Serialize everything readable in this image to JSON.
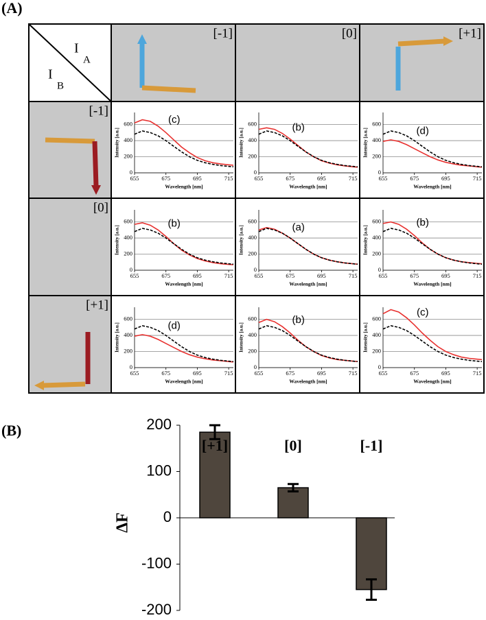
{
  "figure": {
    "panel_a": "(A)",
    "panel_b": "(B)",
    "corner": {
      "top": {
        "main": "I",
        "sub": "A"
      },
      "bottom": {
        "main": "I",
        "sub": "B"
      }
    },
    "col_headers": [
      "[-1]",
      "[0]",
      "[+1]"
    ],
    "row_headers": [
      "[-1]",
      "[0]",
      "[+1]"
    ]
  },
  "chart_data": [
    {
      "type": "line",
      "annotation": "(c)",
      "xlabel": "Wavelength [nm]",
      "ylabel": "Intensity [a.u.]",
      "grid": true,
      "x": [
        655,
        660,
        665,
        670,
        675,
        680,
        685,
        690,
        695,
        700,
        705,
        710,
        715,
        718
      ],
      "xlim": [
        655,
        718
      ],
      "xticks": [
        655,
        675,
        695,
        715
      ],
      "ylim": [
        0,
        750
      ],
      "yticks": [
        0,
        200,
        400,
        600
      ],
      "series": [
        {
          "color": "#e8312f",
          "values": [
            620,
            660,
            640,
            580,
            500,
            410,
            320,
            250,
            190,
            150,
            125,
            110,
            100,
            95
          ]
        },
        {
          "color": "#000000",
          "dash": true,
          "values": [
            480,
            520,
            500,
            460,
            400,
            330,
            260,
            200,
            155,
            125,
            105,
            90,
            80,
            75
          ]
        }
      ]
    },
    {
      "type": "line",
      "annotation": "(b)",
      "xlabel": "Wavelength [nm]",
      "ylabel": "Intensity [a.u.]",
      "grid": true,
      "x": [
        655,
        660,
        665,
        670,
        675,
        680,
        685,
        690,
        695,
        700,
        705,
        710,
        715,
        718
      ],
      "xlim": [
        655,
        718
      ],
      "xticks": [
        655,
        675,
        695,
        715
      ],
      "ylim": [
        0,
        750
      ],
      "yticks": [
        0,
        200,
        400,
        600
      ],
      "series": [
        {
          "color": "#e8312f",
          "values": [
            540,
            560,
            540,
            490,
            420,
            340,
            260,
            200,
            150,
            120,
            100,
            85,
            75,
            70
          ]
        },
        {
          "color": "#000000",
          "dash": true,
          "values": [
            480,
            520,
            500,
            460,
            400,
            330,
            260,
            200,
            155,
            125,
            105,
            90,
            80,
            75
          ]
        }
      ]
    },
    {
      "type": "line",
      "annotation": "(d)",
      "xlabel": "Wavelength [nm]",
      "ylabel": "Intensity [a.u.]",
      "grid": true,
      "x": [
        655,
        660,
        665,
        670,
        675,
        680,
        685,
        690,
        695,
        700,
        705,
        710,
        715,
        718
      ],
      "xlim": [
        655,
        718
      ],
      "xticks": [
        655,
        675,
        695,
        715
      ],
      "ylim": [
        0,
        750
      ],
      "yticks": [
        0,
        200,
        400,
        600
      ],
      "series": [
        {
          "color": "#e8312f",
          "values": [
            390,
            410,
            390,
            350,
            300,
            250,
            200,
            160,
            130,
            110,
            95,
            85,
            75,
            70
          ]
        },
        {
          "color": "#000000",
          "dash": true,
          "values": [
            480,
            520,
            500,
            460,
            400,
            330,
            260,
            200,
            155,
            125,
            105,
            90,
            80,
            75
          ]
        }
      ]
    },
    {
      "type": "line",
      "annotation": "(b)",
      "xlabel": "Wavelength [nm]",
      "ylabel": "Intensity [a.u.]",
      "grid": true,
      "x": [
        655,
        660,
        665,
        670,
        675,
        680,
        685,
        690,
        695,
        700,
        705,
        710,
        715,
        718
      ],
      "xlim": [
        655,
        718
      ],
      "xticks": [
        655,
        675,
        695,
        715
      ],
      "ylim": [
        0,
        750
      ],
      "yticks": [
        0,
        200,
        400,
        600
      ],
      "series": [
        {
          "color": "#e8312f",
          "values": [
            570,
            590,
            560,
            500,
            420,
            330,
            250,
            190,
            145,
            115,
            95,
            80,
            72,
            68
          ]
        },
        {
          "color": "#000000",
          "dash": true,
          "values": [
            480,
            520,
            500,
            460,
            400,
            330,
            260,
            200,
            155,
            125,
            105,
            90,
            80,
            75
          ]
        }
      ]
    },
    {
      "type": "line",
      "annotation": "(a)",
      "xlabel": "Wavelength [nm]",
      "ylabel": "Intensity [a.u.]",
      "grid": true,
      "x": [
        655,
        660,
        665,
        670,
        675,
        680,
        685,
        690,
        695,
        700,
        705,
        710,
        715,
        718
      ],
      "xlim": [
        655,
        718
      ],
      "xticks": [
        655,
        675,
        695,
        715
      ],
      "ylim": [
        0,
        750
      ],
      "yticks": [
        0,
        200,
        400,
        600
      ],
      "series": [
        {
          "color": "#e8312f",
          "values": [
            500,
            530,
            510,
            460,
            400,
            330,
            260,
            200,
            155,
            125,
            105,
            90,
            80,
            75
          ]
        },
        {
          "color": "#000000",
          "dash": true,
          "values": [
            480,
            520,
            500,
            460,
            400,
            330,
            260,
            200,
            155,
            125,
            105,
            90,
            80,
            75
          ]
        }
      ]
    },
    {
      "type": "line",
      "annotation": "(b)",
      "xlabel": "Wavelength [nm]",
      "ylabel": "Intensity [a.u.]",
      "grid": true,
      "x": [
        655,
        660,
        665,
        670,
        675,
        680,
        685,
        690,
        695,
        700,
        705,
        710,
        715,
        718
      ],
      "xlim": [
        655,
        718
      ],
      "xticks": [
        655,
        675,
        695,
        715
      ],
      "ylim": [
        0,
        750
      ],
      "yticks": [
        0,
        200,
        400,
        600
      ],
      "series": [
        {
          "color": "#e8312f",
          "values": [
            580,
            600,
            570,
            510,
            430,
            340,
            260,
            200,
            155,
            125,
            105,
            95,
            85,
            80
          ]
        },
        {
          "color": "#000000",
          "dash": true,
          "values": [
            480,
            520,
            500,
            460,
            400,
            330,
            260,
            200,
            155,
            125,
            105,
            90,
            80,
            75
          ]
        }
      ]
    },
    {
      "type": "line",
      "annotation": "(d)",
      "xlabel": "Wavelength [nm]",
      "ylabel": "Intensity [a.u.]",
      "grid": true,
      "x": [
        655,
        660,
        665,
        670,
        675,
        680,
        685,
        690,
        695,
        700,
        705,
        710,
        715,
        718
      ],
      "xlim": [
        655,
        718
      ],
      "xticks": [
        655,
        675,
        695,
        715
      ],
      "ylim": [
        0,
        750
      ],
      "yticks": [
        0,
        200,
        400,
        600
      ],
      "series": [
        {
          "color": "#e8312f",
          "values": [
            390,
            410,
            390,
            350,
            300,
            250,
            200,
            160,
            130,
            110,
            95,
            85,
            75,
            70
          ]
        },
        {
          "color": "#000000",
          "dash": true,
          "values": [
            480,
            520,
            500,
            460,
            400,
            330,
            260,
            200,
            155,
            125,
            105,
            90,
            80,
            75
          ]
        }
      ]
    },
    {
      "type": "line",
      "annotation": "(b)",
      "xlabel": "Wavelength [nm]",
      "ylabel": "Intensity [a.u.]",
      "grid": true,
      "x": [
        655,
        660,
        665,
        670,
        675,
        680,
        685,
        690,
        695,
        700,
        705,
        710,
        715,
        718
      ],
      "xlim": [
        655,
        718
      ],
      "xticks": [
        655,
        675,
        695,
        715
      ],
      "ylim": [
        0,
        750
      ],
      "yticks": [
        0,
        200,
        400,
        600
      ],
      "series": [
        {
          "color": "#e8312f",
          "values": [
            560,
            600,
            570,
            510,
            430,
            340,
            260,
            200,
            150,
            120,
            100,
            90,
            80,
            75
          ]
        },
        {
          "color": "#000000",
          "dash": true,
          "values": [
            480,
            520,
            500,
            460,
            400,
            330,
            260,
            200,
            155,
            125,
            105,
            90,
            80,
            75
          ]
        }
      ]
    },
    {
      "type": "line",
      "annotation": "(c)",
      "xlabel": "Wavelength [nm]",
      "ylabel": "Intensity [a.u.]",
      "grid": true,
      "x": [
        655,
        660,
        665,
        670,
        675,
        680,
        685,
        690,
        695,
        700,
        705,
        710,
        715,
        718
      ],
      "xlim": [
        655,
        718
      ],
      "xticks": [
        655,
        675,
        695,
        715
      ],
      "ylim": [
        0,
        750
      ],
      "yticks": [
        0,
        200,
        400,
        600
      ],
      "series": [
        {
          "color": "#e8312f",
          "values": [
            670,
            720,
            690,
            620,
            530,
            430,
            340,
            260,
            200,
            160,
            130,
            115,
            105,
            100
          ]
        },
        {
          "color": "#000000",
          "dash": true,
          "values": [
            480,
            520,
            500,
            460,
            400,
            330,
            260,
            200,
            155,
            125,
            105,
            90,
            80,
            75
          ]
        }
      ]
    },
    {
      "type": "bar",
      "ylabel": "ΔF",
      "categories": [
        "[+1]",
        "[0]",
        "[-1]"
      ],
      "values": [
        185,
        65,
        -155
      ],
      "errors": [
        15,
        8,
        22
      ],
      "color": "#4f463d",
      "ylim": [
        -200,
        200
      ],
      "yticks": [
        -200,
        -100,
        0,
        100,
        200
      ]
    }
  ]
}
